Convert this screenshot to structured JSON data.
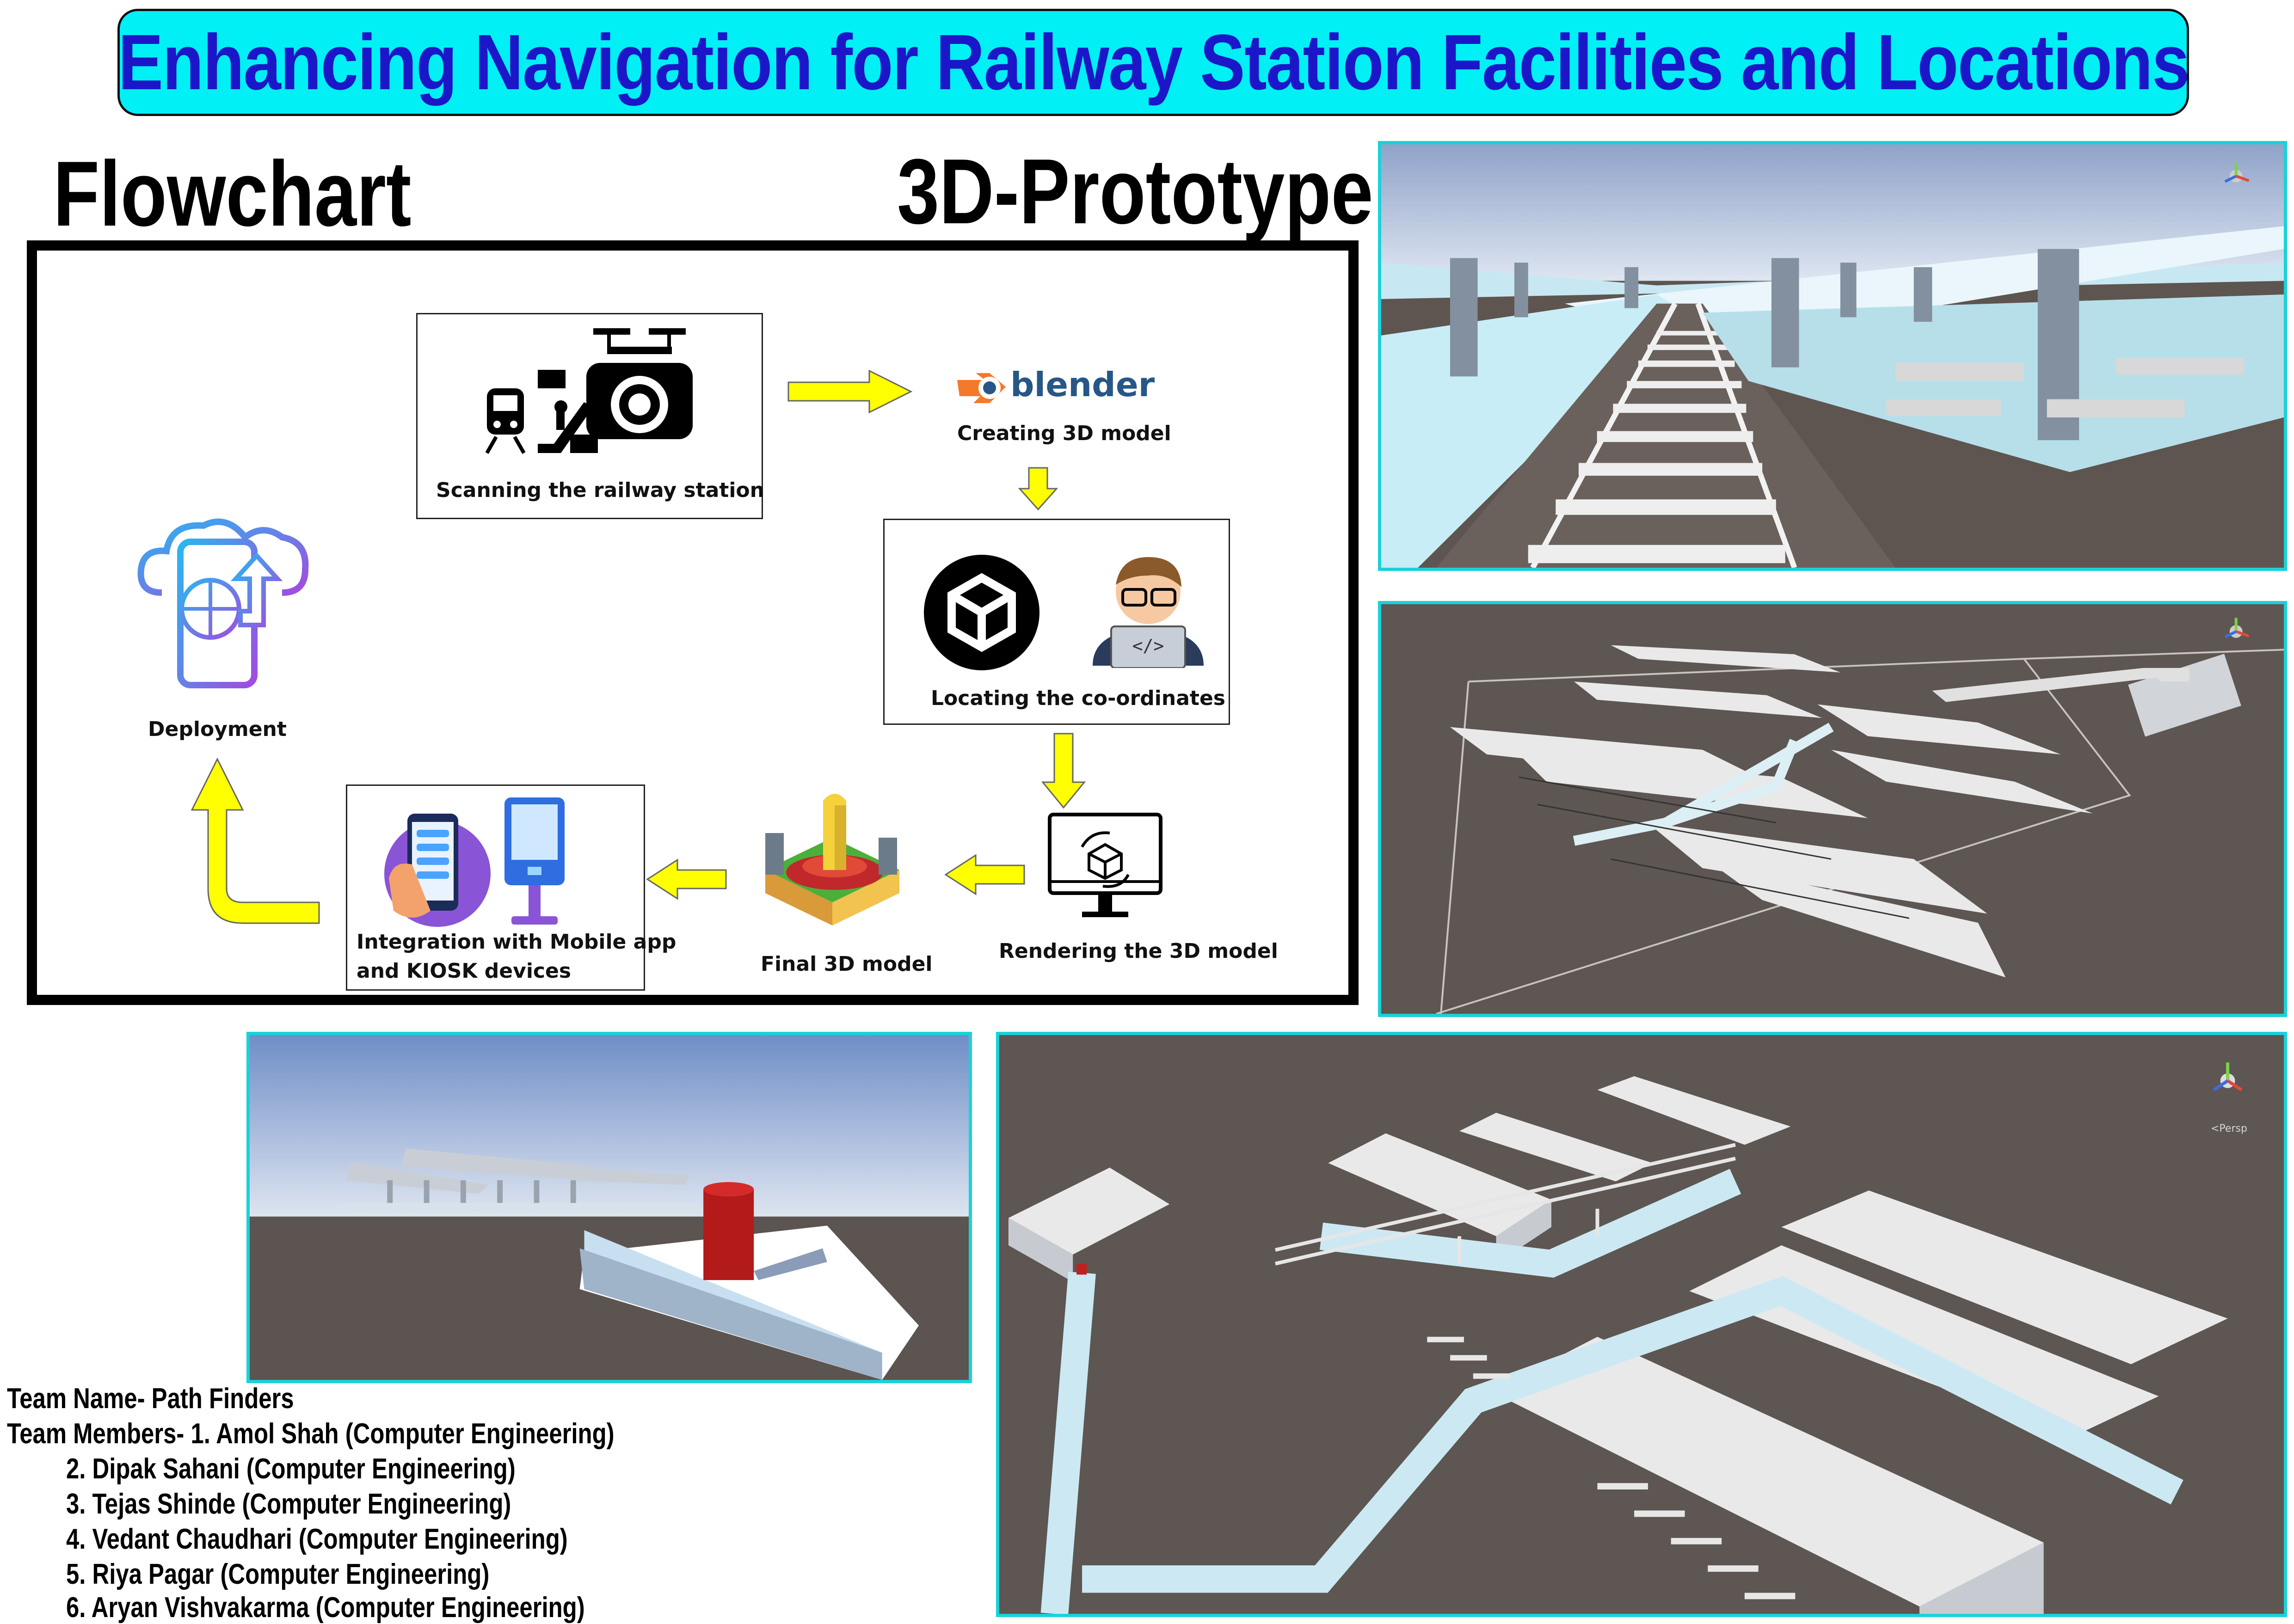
{
  "title": "Enhancing Navigation for Railway Station Facilities and Locations",
  "headings": {
    "flowchart": "Flowchart",
    "prototype": "3D-Prototype"
  },
  "flowchart": {
    "steps": {
      "scan": "Scanning the railway station",
      "blender_logo": "blender",
      "create": "Creating 3D model",
      "locate": "Locating the co-ordinates",
      "render": "Rendering the 3D model",
      "final": "Final 3D model",
      "integration_line1": "Integration with Mobile app",
      "integration_line2": "and KIOSK devices",
      "deployment": "Deployment"
    }
  },
  "viewport": {
    "persp_label": "<Persp"
  },
  "team": {
    "name_line": "Team Name- Path Finders",
    "members_prefix": "Team Members- ",
    "members": [
      "1. Amol Shah (Computer Engineering)",
      "2. Dipak Sahani (Computer Engineering)",
      "3. Tejas Shinde (Computer Engineering)",
      "4. Vedant Chaudhari (Computer Engineering)",
      "5. Riya Pagar (Computer Engineering)",
      "6. Aryan Vishvakarma (Computer Engineering)"
    ]
  },
  "colors": {
    "banner": "#00f0f6",
    "title_text": "#1b17c8",
    "arrow_yellow": "#ffff00",
    "shot_border": "#1bd1d8"
  }
}
